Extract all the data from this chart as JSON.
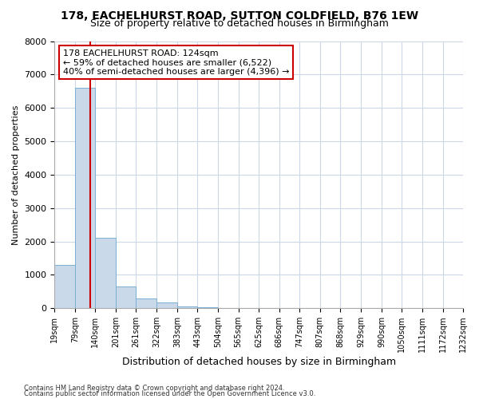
{
  "title1": "178, EACHELHURST ROAD, SUTTON COLDFIELD, B76 1EW",
  "title2": "Size of property relative to detached houses in Birmingham",
  "xlabel": "Distribution of detached houses by size in Birmingham",
  "ylabel": "Number of detached properties",
  "footnote1": "Contains HM Land Registry data © Crown copyright and database right 2024.",
  "footnote2": "Contains public sector information licensed under the Open Government Licence v3.0.",
  "annotation_line1": "178 EACHELHURST ROAD: 124sqm",
  "annotation_line2": "← 59% of detached houses are smaller (6,522)",
  "annotation_line3": "40% of semi-detached houses are larger (4,396) →",
  "property_size": 124,
  "bin_edges": [
    19,
    79,
    140,
    201,
    261,
    322,
    383,
    443,
    504,
    565,
    625,
    686,
    747,
    807,
    868,
    929,
    990,
    1050,
    1111,
    1172,
    1232
  ],
  "bar_heights": [
    1300,
    6600,
    2100,
    650,
    300,
    170,
    50,
    20,
    5,
    0,
    0,
    0,
    0,
    0,
    0,
    0,
    0,
    0,
    0,
    0
  ],
  "bar_color": "#c9d9ea",
  "bar_edge_color": "#7bafd4",
  "vline_color": "#cc0000",
  "grid_color": "#ccd8e8",
  "background_color": "#ffffff",
  "ylim": [
    0,
    8000
  ],
  "yticks": [
    0,
    1000,
    2000,
    3000,
    4000,
    5000,
    6000,
    7000,
    8000
  ],
  "title1_fontsize": 10,
  "title2_fontsize": 9,
  "ylabel_fontsize": 8,
  "xlabel_fontsize": 9,
  "tick_fontsize": 7,
  "annot_fontsize": 8
}
